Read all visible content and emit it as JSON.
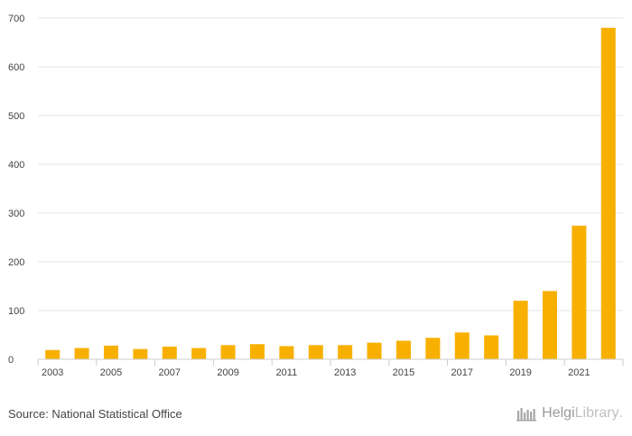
{
  "chart_data": {
    "type": "bar",
    "title": "",
    "xlabel": "",
    "ylabel": "",
    "ylim": [
      0,
      700
    ],
    "yticks": [
      0,
      100,
      200,
      300,
      400,
      500,
      600,
      700
    ],
    "categories": [
      "2003",
      "2004",
      "2005",
      "2006",
      "2007",
      "2008",
      "2009",
      "2010",
      "2011",
      "2012",
      "2013",
      "2014",
      "2015",
      "2016",
      "2017",
      "2018",
      "2019",
      "2020",
      "2021",
      "2022"
    ],
    "shown_tick_labels": [
      "2003",
      "2005",
      "2007",
      "2009",
      "2011",
      "2013",
      "2015",
      "2017",
      "2019",
      "2021"
    ],
    "values": [
      19,
      23,
      28,
      21,
      26,
      23,
      29,
      31,
      27,
      29,
      29,
      34,
      38,
      44,
      55,
      49,
      120,
      140,
      274,
      680
    ],
    "bar_color": "#F8B000",
    "grid": true
  },
  "footer": {
    "source": "Source: National Statistical Office",
    "brand_a": "Helgi",
    "brand_b": "Library",
    "brand_suffix": "."
  }
}
